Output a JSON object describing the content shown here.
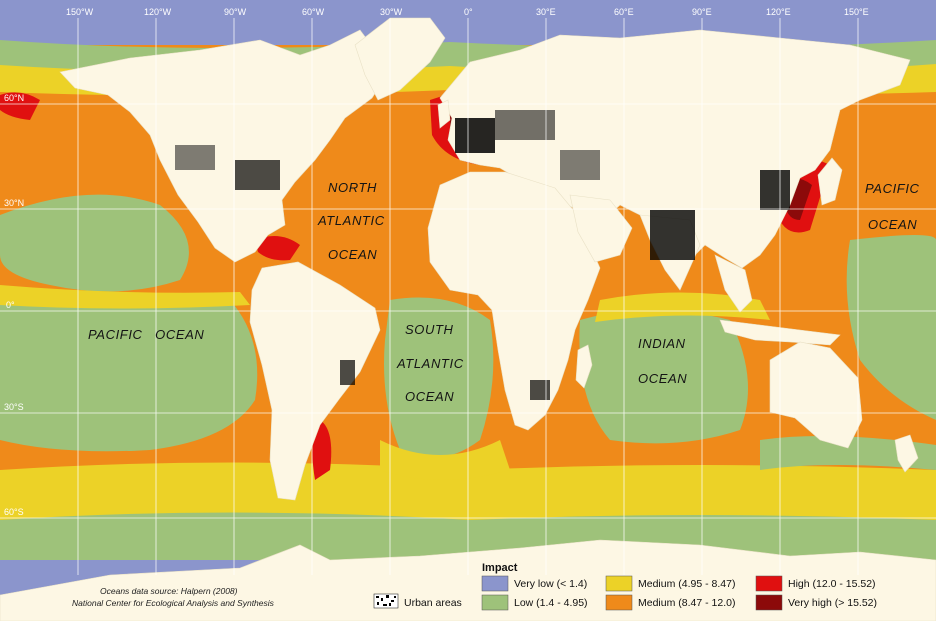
{
  "colors": {
    "very_low": "#8b95cc",
    "low": "#9ec27a",
    "medium_low": "#ecd227",
    "medium": "#ef8a1a",
    "high": "#e01010",
    "very_high": "#8c0a0a",
    "land": "#fdf7e4",
    "urban": "#000000"
  },
  "longitude_labels": [
    "150°W",
    "120°W",
    "90°W",
    "60°W",
    "30°W",
    "0°",
    "30°E",
    "60°E",
    "90°E",
    "120°E",
    "150°E"
  ],
  "latitude_labels": [
    "60°N",
    "30°N",
    "0°",
    "30°S",
    "60°S"
  ],
  "ocean_labels": {
    "north_atlantic": [
      "NORTH",
      "ATLANTIC",
      "OCEAN"
    ],
    "south_atlantic": [
      "SOUTH",
      "ATLANTIC",
      "OCEAN"
    ],
    "pacific_west": "PACIFIC   OCEAN",
    "pacific_east": [
      "PACIFIC",
      "OCEAN"
    ],
    "indian": [
      "INDIAN",
      "OCEAN"
    ]
  },
  "legend": {
    "title": "Impact",
    "urban_label": "Urban areas",
    "items": [
      {
        "label": "Very low (< 1.4)",
        "color": "#8b95cc"
      },
      {
        "label": "Low (1.4 - 4.95)",
        "color": "#9ec27a"
      },
      {
        "label": "Medium (4.95 - 8.47)",
        "color": "#ecd227"
      },
      {
        "label": "Medium (8.47 - 12.0)",
        "color": "#ef8a1a"
      },
      {
        "label": "High (12.0 - 15.52)",
        "color": "#e01010"
      },
      {
        "label": "Very high (> 15.52)",
        "color": "#8c0a0a"
      }
    ]
  },
  "source": {
    "line1": "Oceans data source: Halpern (2008)",
    "line2": "National Center for Ecological Analysis and Synthesis"
  }
}
